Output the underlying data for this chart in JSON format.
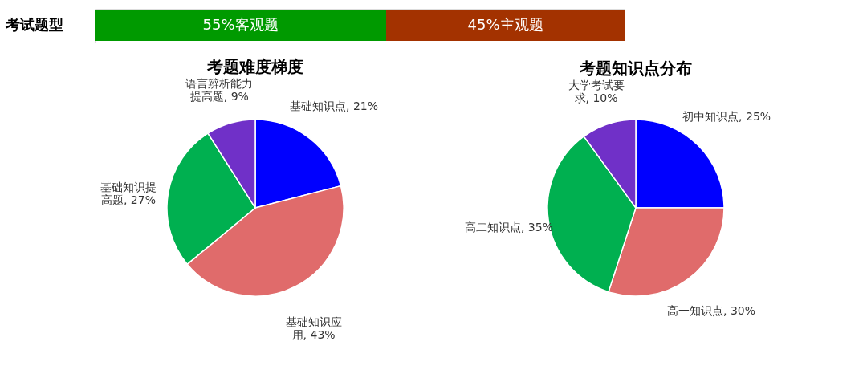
{
  "chart_data": [
    {
      "type": "bar",
      "orientation": "horizontal",
      "stacked": true,
      "categories": [
        "考试题型"
      ],
      "xlim": [
        0,
        100
      ],
      "tick_labels": "y",
      "series": [
        {
          "color": "#009a00",
          "values": [
            55
          ],
          "value_labels": [
            "55%客观题"
          ]
        },
        {
          "color": "#a33200",
          "values": [
            45
          ],
          "value_labels": [
            "45%主观题"
          ]
        }
      ]
    },
    {
      "type": "pie",
      "title": "考题难度梯度",
      "categories": [
        "基础知识点",
        "基础知识应用",
        "基础知识提高题",
        "语言辨析能力提高题"
      ],
      "values": [
        21,
        43,
        27,
        9
      ],
      "value_labels": [
        "21%",
        "43%",
        "27%",
        "9%"
      ],
      "colors": [
        "#0000ff",
        "#e06b6b",
        "#00b050",
        "#7030c8"
      ]
    },
    {
      "type": "pie",
      "title": "考题知识点分布",
      "categories": [
        "初中知识点",
        "高一知识点",
        "高二知识点",
        "大学考试要求"
      ],
      "values": [
        25,
        30,
        35,
        10
      ],
      "value_labels": [
        "25%",
        "30%",
        "35%",
        "10%"
      ],
      "colors": [
        "#0000ff",
        "#e06b6b",
        "#00b050",
        "#7030c8"
      ]
    }
  ]
}
